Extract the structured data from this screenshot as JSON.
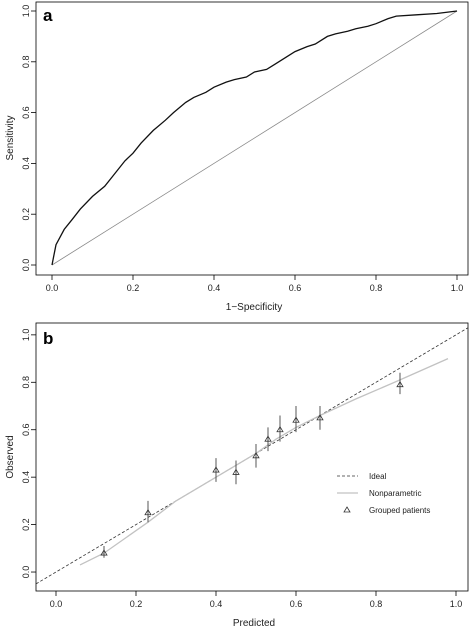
{
  "chart_data": [
    {
      "type": "line",
      "panel_label": "a",
      "xlabel": "1−Specificity",
      "ylabel": "Sensitivity",
      "xlim": [
        0,
        1
      ],
      "ylim": [
        0,
        1
      ],
      "xticks": [
        "0.0",
        "0.2",
        "0.4",
        "0.6",
        "0.8",
        "1.0"
      ],
      "yticks": [
        "0.0",
        "0.2",
        "0.4",
        "0.6",
        "0.8",
        "1.0"
      ],
      "grid": false,
      "series": [
        {
          "x": [
            0,
            0.005,
            0.01,
            0.02,
            0.03,
            0.05,
            0.07,
            0.1,
            0.13,
            0.15,
            0.18,
            0.2,
            0.22,
            0.25,
            0.28,
            0.3,
            0.33,
            0.35,
            0.38,
            0.4,
            0.43,
            0.45,
            0.48,
            0.5,
            0.53,
            0.55,
            0.58,
            0.6,
            0.63,
            0.65,
            0.68,
            0.7,
            0.73,
            0.75,
            0.78,
            0.8,
            0.83,
            0.85,
            0.9,
            0.95,
            1.0
          ],
          "y": [
            0,
            0.04,
            0.08,
            0.11,
            0.14,
            0.18,
            0.22,
            0.27,
            0.31,
            0.35,
            0.41,
            0.44,
            0.48,
            0.53,
            0.57,
            0.6,
            0.64,
            0.66,
            0.68,
            0.7,
            0.72,
            0.73,
            0.74,
            0.76,
            0.77,
            0.79,
            0.82,
            0.84,
            0.86,
            0.87,
            0.9,
            0.91,
            0.92,
            0.93,
            0.94,
            0.95,
            0.97,
            0.98,
            0.985,
            0.99,
            1.0
          ]
        },
        {
          "x": [
            0,
            1
          ],
          "y": [
            0,
            1
          ]
        }
      ]
    },
    {
      "type": "scatter",
      "panel_label": "b",
      "xlabel": "Predicted",
      "ylabel": "Observed",
      "xlim": [
        -0.05,
        1.03
      ],
      "ylim": [
        -0.08,
        1.05
      ],
      "xticks": [
        "0.0",
        "0.2",
        "0.4",
        "0.6",
        "0.8",
        "1.0"
      ],
      "yticks": [
        "0.0",
        "0.2",
        "0.4",
        "0.6",
        "0.8",
        "1.0"
      ],
      "grid": false,
      "legend_position": "right",
      "series": [
        {
          "name": "Ideal",
          "x": [
            -0.05,
            1.03
          ],
          "y": [
            -0.05,
            1.03
          ]
        },
        {
          "name": "Nonparametric",
          "x": [
            0.06,
            0.12,
            0.23,
            0.3,
            0.4,
            0.45,
            0.5,
            0.55,
            0.6,
            0.66,
            0.75,
            0.86,
            0.98
          ],
          "y": [
            0.03,
            0.08,
            0.21,
            0.3,
            0.4,
            0.45,
            0.5,
            0.56,
            0.61,
            0.66,
            0.73,
            0.81,
            0.9
          ]
        },
        {
          "name": "Grouped patients",
          "x": [
            0.12,
            0.23,
            0.4,
            0.45,
            0.5,
            0.53,
            0.56,
            0.6,
            0.66,
            0.86
          ],
          "y": [
            0.08,
            0.25,
            0.43,
            0.42,
            0.49,
            0.56,
            0.6,
            0.64,
            0.65,
            0.79
          ],
          "lower": [
            0.06,
            0.21,
            0.38,
            0.37,
            0.44,
            0.51,
            0.55,
            0.59,
            0.6,
            0.75
          ],
          "upper": [
            0.11,
            0.3,
            0.48,
            0.47,
            0.54,
            0.61,
            0.66,
            0.7,
            0.7,
            0.84
          ]
        }
      ]
    }
  ]
}
